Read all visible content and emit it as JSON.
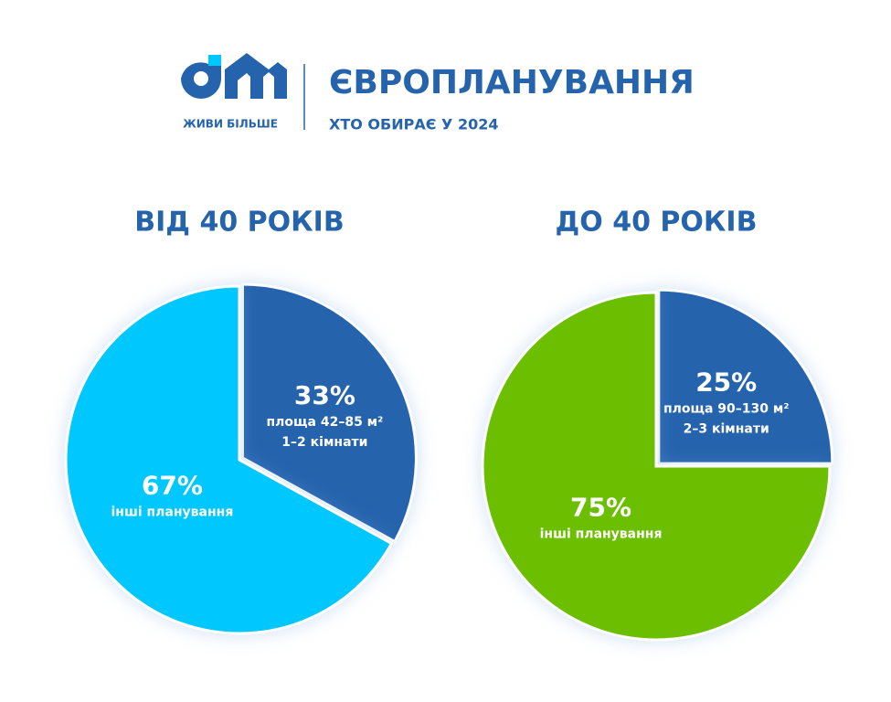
{
  "header": {
    "logo_text": "ЖИВИ БІЛЬШЕ",
    "title": "ЄВРОПЛАНУВАННЯ",
    "subtitle": "ХТО ОБИРАЄ У 2024"
  },
  "chart_data": [
    {
      "type": "pie",
      "title": "ВІД 40 РОКІВ",
      "values": [
        33,
        67
      ],
      "value_labels": [
        "33%",
        "67%"
      ],
      "labels": [
        [
          "площа 42–85 м²",
          "1–2 кімнати"
        ],
        [
          "інші планування"
        ]
      ],
      "colors": [
        "#2563ad",
        "#00c8ff"
      ]
    },
    {
      "type": "pie",
      "title": "ДО 40 РОКІВ",
      "values": [
        25,
        75
      ],
      "value_labels": [
        "25%",
        "75%"
      ],
      "labels": [
        [
          "площа 90–130 м²",
          "2–3 кімнати"
        ],
        [
          "інші планування"
        ]
      ],
      "colors": [
        "#2563ad",
        "#6cbf00"
      ]
    }
  ]
}
